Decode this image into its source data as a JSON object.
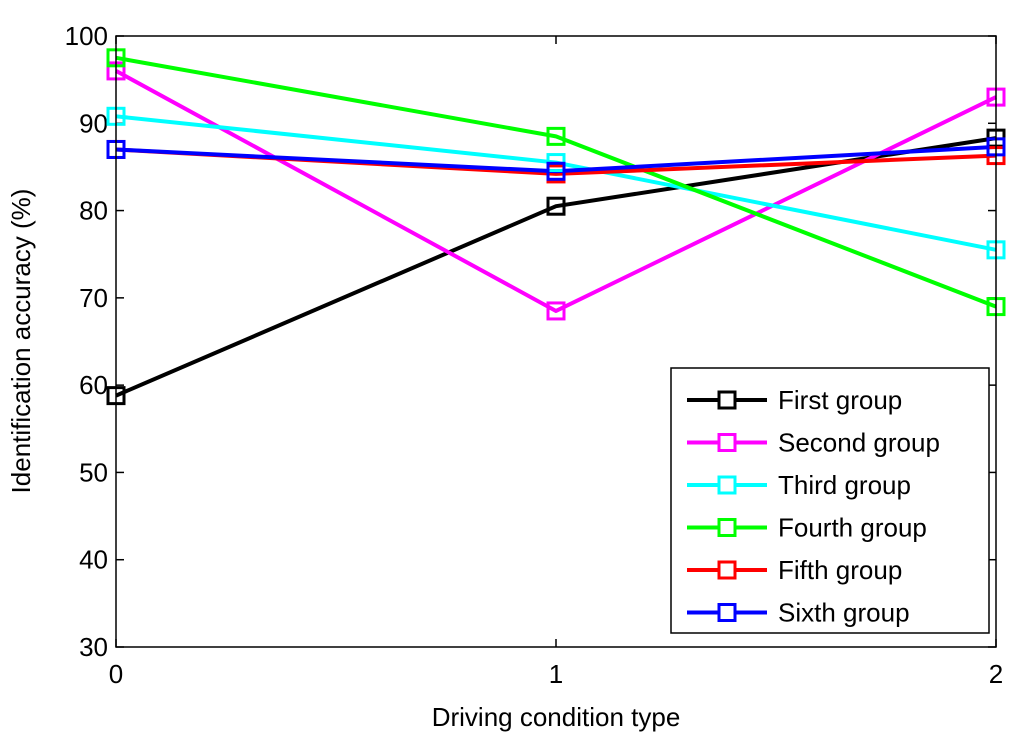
{
  "chart_data": {
    "type": "line",
    "title": "",
    "xlabel": "Driving condition type",
    "ylabel": "Identification accuracy (%)",
    "x": [
      0,
      1,
      2
    ],
    "xlim": [
      0,
      2
    ],
    "ylim": [
      30,
      100
    ],
    "xticks": [
      "0",
      "1",
      "2"
    ],
    "yticks": [
      "30",
      "40",
      "50",
      "60",
      "70",
      "80",
      "90",
      "100"
    ],
    "grid": false,
    "legend_position": "bottom-right",
    "marker": "square",
    "series": [
      {
        "name": "First group",
        "color": "#000000",
        "values": [
          58.8,
          80.5,
          88.3
        ]
      },
      {
        "name": "Second group",
        "color": "#ff00ff",
        "values": [
          96.0,
          68.5,
          93.0
        ]
      },
      {
        "name": "Third group",
        "color": "#00ffff",
        "values": [
          90.8,
          85.5,
          75.5
        ]
      },
      {
        "name": "Fourth group",
        "color": "#00ff00",
        "values": [
          97.5,
          88.5,
          69.0
        ]
      },
      {
        "name": "Fifth group",
        "color": "#ff0000",
        "values": [
          87.0,
          84.2,
          86.3
        ]
      },
      {
        "name": "Sixth group",
        "color": "#0000ff",
        "values": [
          87.0,
          84.5,
          87.3
        ]
      }
    ]
  }
}
